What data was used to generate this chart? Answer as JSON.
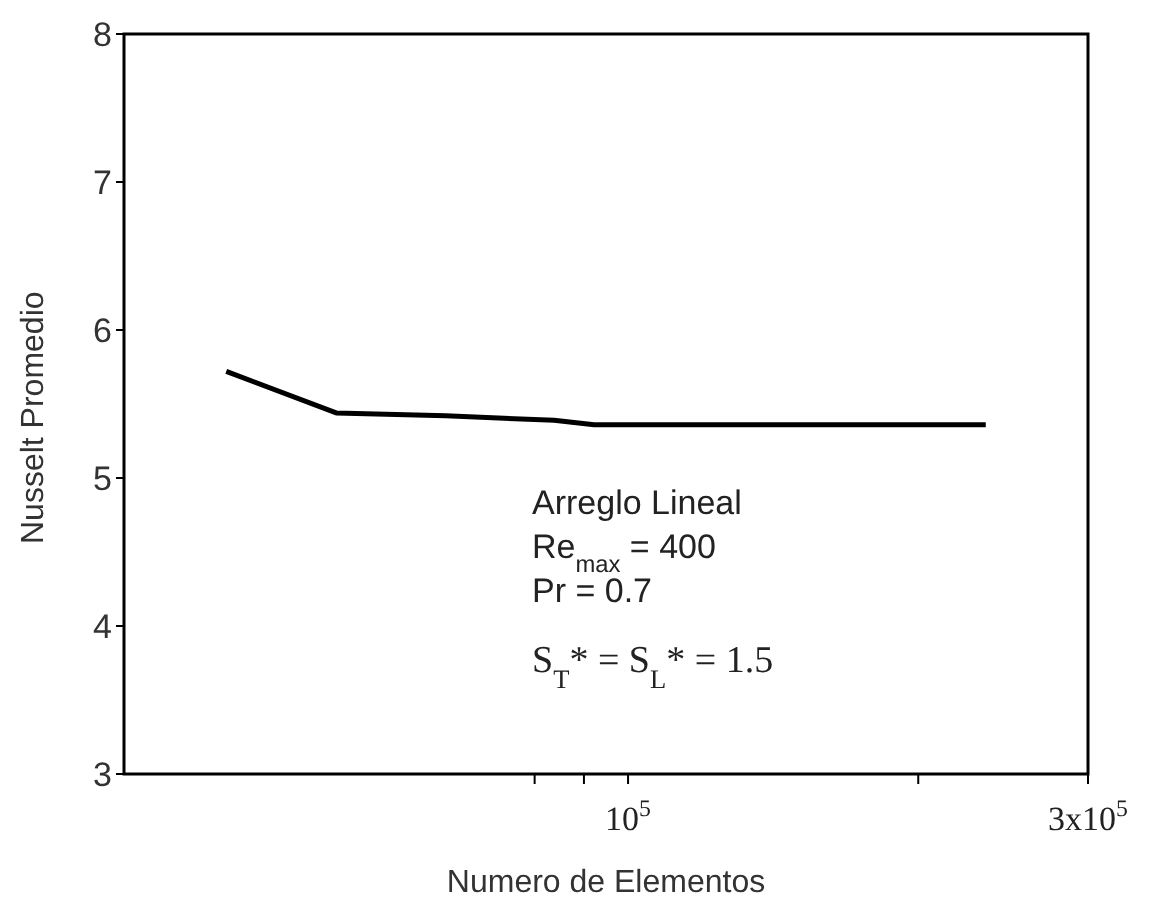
{
  "chart_data": {
    "type": "line",
    "xlabel": "Numero de Elementos",
    "ylabel": "Nusselt Promedio",
    "log": "x",
    "xlim": [
      30000,
      300000
    ],
    "xticks": [
      {
        "value": 80000,
        "label": null
      },
      {
        "value": 90000,
        "label": null
      },
      {
        "value": 100000,
        "label": "10$^{5}$"
      },
      {
        "value": 200000,
        "label": null
      },
      {
        "value": 300000,
        "label": "3x10$^{5}$"
      }
    ],
    "ylim": [
      3,
      8
    ],
    "yticks": [
      3,
      4,
      5,
      6,
      7,
      8
    ],
    "grid": false,
    "legend": false,
    "marker": "none",
    "line_style": "solid",
    "series": [
      {
        "color": "#000000",
        "x": [
          38300,
          49800,
          64700,
          83800,
          92200,
          235000
        ],
        "values": [
          5.72,
          5.44,
          5.42,
          5.39,
          5.36,
          5.36
        ]
      }
    ],
    "annotations": [
      "Arreglo Lineal",
      "Re$_{max}$ = 400",
      "Pr = 0.7",
      "S$_{T}$* = S$_{L}$* = 1.5"
    ]
  }
}
